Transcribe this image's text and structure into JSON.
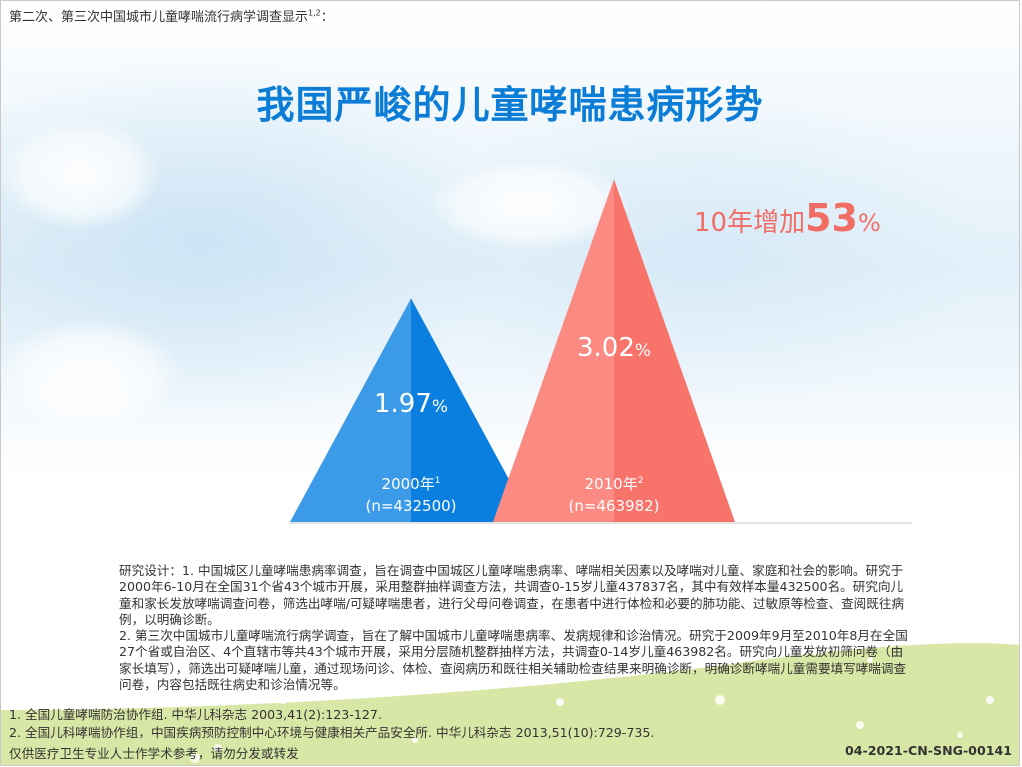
{
  "header": {
    "subtitle": "第二次、第三次中国城市儿童哮喘流行病学调查显示",
    "subtitle_refs": "1,2",
    "subtitle_colon": "：",
    "title": "我国严峻的儿童哮喘患病形势"
  },
  "callout": {
    "prefix": "10年增加",
    "value": "53",
    "unit": "%",
    "color": "#f26d64"
  },
  "chart_data": {
    "type": "bar",
    "shape": "triangle",
    "categories": [
      "2000年",
      "2010年"
    ],
    "category_refs": [
      "1",
      "2"
    ],
    "samples": [
      "(n=432500)",
      "(n=463982)"
    ],
    "values": [
      1.97,
      3.02
    ],
    "value_labels": [
      "1.97",
      "3.02"
    ],
    "unit": "%",
    "colors": [
      "#0b7fe0",
      "#f8736a"
    ],
    "colors_light": [
      "#3b9be8",
      "#fb8b82"
    ],
    "grid": false
  },
  "notes": {
    "design": [
      "研究设计：1. 中国城区儿童哮喘患病率调查，旨在调查中国城区儿童哮喘患病率、哮喘相关因素以及哮喘对儿童、家庭和社会的影响。研究于2000年6-10月在全国31个省43个城市开展，采用整群抽样调查方法，共调查0-15岁儿童437837名，其中有效样本量432500名。研究向儿童和家长发放哮喘调查问卷，筛选出哮喘/可疑哮喘患者，进行父母问卷调查，在患者中进行体检和必要的肺功能、过敏原等检查、查阅既往病例，以明确诊断。",
      "2. 第三次中国城市儿童哮喘流行病学调查，旨在了解中国城市儿童哮喘患病率、发病规律和诊治情况。研究于2009年9月至2010年8月在全国27个省或自治区、4个直辖市等共43个城市开展，采用分层随机整群抽样方法，共调查0-14岁儿童463982名。研究向儿童发放初筛问卷（由家长填写），筛选出可疑哮喘儿童，通过现场问诊、体检、查阅病历和既往相关辅助检查结果来明确诊断，明确诊断哮喘儿童需要填写哮喘调查问卷，内容包括既往病史和诊治情况等。"
    ],
    "references": [
      "1. 全国儿童哮喘防治协作组. 中华儿科杂志 2003,41(2):123-127.",
      "2. 全国儿科哮喘协作组，中国疾病预防控制中心环境与健康相关产品安全所. 中华儿科杂志 2013,51(10):729-735."
    ]
  },
  "footer": {
    "disclaimer": "仅供医疗卫生专业人士作学术参考，请勿分发或转发",
    "code": "04-2021-CN-SNG-00141"
  }
}
